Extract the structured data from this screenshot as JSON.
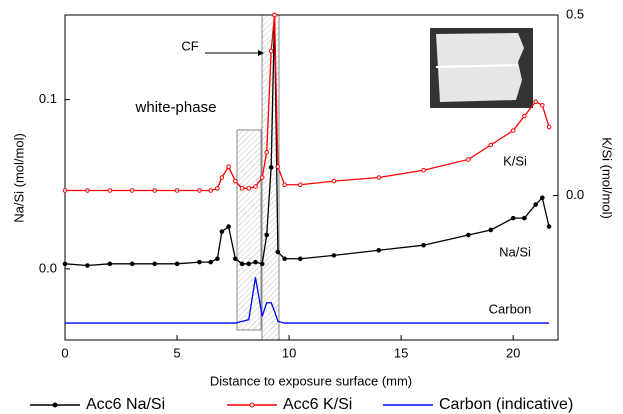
{
  "chart_data": {
    "type": "line",
    "x_label": "Distance to exposure surface (mm)",
    "y_label": "Na/Si (mol/mol)",
    "y2_label": "K/Si (mol/mol)",
    "xlim": [
      0,
      22
    ],
    "xticks": [
      0,
      5,
      10,
      15,
      20
    ],
    "ylim": [
      -0.042,
      0.15
    ],
    "yticks": [
      {
        "value": 0,
        "label": "0.0"
      },
      0.1
    ],
    "y2lim": [
      -0.4,
      0.5
    ],
    "y2ticks": [
      {
        "value": 0,
        "label": "0.0"
      },
      0.5
    ],
    "annotations": [
      "CF",
      "white-phase",
      "K/Si",
      "Na/Si",
      "Carbon"
    ],
    "x": [
      0,
      1,
      2,
      3,
      4,
      5,
      6,
      6.5,
      6.8,
      7.0,
      7.3,
      7.6,
      7.9,
      8.2,
      8.5,
      8.8,
      9.0,
      9.2,
      9.35,
      9.5,
      9.8,
      10.5,
      12,
      14,
      16,
      18,
      19,
      20,
      20.5,
      21,
      21.3,
      21.6
    ],
    "series": [
      {
        "name": "Acc6 Na/Si",
        "color": "#000000",
        "axis": "y",
        "values": [
          0.003,
          0.002,
          0.003,
          0.003,
          0.003,
          0.003,
          0.004,
          0.004,
          0.006,
          0.022,
          0.025,
          0.006,
          0.003,
          0.003,
          0.004,
          0.003,
          0.02,
          0.06,
          0.15,
          0.01,
          0.006,
          0.006,
          0.008,
          0.011,
          0.014,
          0.02,
          0.023,
          0.03,
          0.03,
          0.038,
          0.042,
          0.025
        ]
      },
      {
        "name": "Acc6 K/Si",
        "color": "#ff0000",
        "axis": "y2",
        "values": [
          0.014,
          0.014,
          0.014,
          0.014,
          0.014,
          0.014,
          0.014,
          0.014,
          0.02,
          0.05,
          0.08,
          0.04,
          0.02,
          0.02,
          0.025,
          0.05,
          0.12,
          0.4,
          0.5,
          0.08,
          0.03,
          0.03,
          0.04,
          0.05,
          0.07,
          0.1,
          0.14,
          0.18,
          0.22,
          0.26,
          0.25,
          0.19
        ]
      },
      {
        "name": "Carbon (indicative)",
        "color": "#0000ff",
        "axis": "y",
        "values": [
          -0.032,
          -0.032,
          -0.032,
          -0.032,
          -0.032,
          -0.032,
          -0.032,
          -0.032,
          -0.032,
          -0.032,
          -0.032,
          -0.032,
          -0.031,
          -0.03,
          -0.005,
          -0.028,
          -0.02,
          -0.02,
          -0.025,
          -0.031,
          -0.032,
          -0.032,
          -0.032,
          -0.032,
          -0.032,
          -0.032,
          -0.032,
          -0.032,
          -0.032,
          -0.032,
          -0.032,
          -0.032
        ]
      }
    ]
  }
}
